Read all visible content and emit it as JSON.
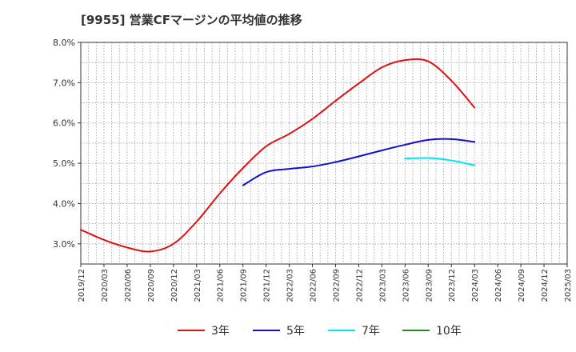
{
  "chart_data": {
    "type": "line",
    "title": "[9955]  営業CFマージンの平均値の推移",
    "xlabel": "",
    "ylabel": "",
    "ylim": [
      2.5,
      8.0
    ],
    "y_ticks": [
      "3.0%",
      "4.0%",
      "5.0%",
      "6.0%",
      "7.0%",
      "8.0%"
    ],
    "y_tick_values": [
      3.0,
      4.0,
      5.0,
      6.0,
      7.0,
      8.0
    ],
    "x_ticks": [
      "2019/12",
      "2020/03",
      "2020/06",
      "2020/09",
      "2020/12",
      "2021/03",
      "2021/06",
      "2021/09",
      "2021/12",
      "2022/03",
      "2022/06",
      "2022/09",
      "2022/12",
      "2023/03",
      "2023/06",
      "2023/09",
      "2023/12",
      "2024/03",
      "2024/06",
      "2024/09",
      "2024/12",
      "2025/03"
    ],
    "grid": true,
    "legend_position": "bottom",
    "series": [
      {
        "name": "3年",
        "color": "#dd1111",
        "x": [
          "2019/12",
          "2020/03",
          "2020/06",
          "2020/09",
          "2020/12",
          "2021/03",
          "2021/06",
          "2021/09",
          "2021/12",
          "2022/03",
          "2022/06",
          "2022/09",
          "2022/12",
          "2023/03",
          "2023/06",
          "2023/09",
          "2023/12",
          "2024/03"
        ],
        "values": [
          3.35,
          3.1,
          2.91,
          2.81,
          3.0,
          3.55,
          4.25,
          4.88,
          5.42,
          5.73,
          6.1,
          6.55,
          6.98,
          7.38,
          7.56,
          7.53,
          7.05,
          6.38
        ]
      },
      {
        "name": "5年",
        "color": "#1111cc",
        "x": [
          "2021/09",
          "2021/12",
          "2022/03",
          "2022/06",
          "2022/09",
          "2022/12",
          "2023/03",
          "2023/06",
          "2023/09",
          "2023/12",
          "2024/03"
        ],
        "values": [
          4.45,
          4.78,
          4.86,
          4.92,
          5.03,
          5.17,
          5.32,
          5.46,
          5.58,
          5.6,
          5.53
        ]
      },
      {
        "name": "7年",
        "color": "#00e5ee",
        "x": [
          "2023/06",
          "2023/09",
          "2023/12",
          "2024/03"
        ],
        "values": [
          5.12,
          5.13,
          5.07,
          4.95
        ]
      },
      {
        "name": "10年",
        "color": "#228b22",
        "x": [],
        "values": []
      }
    ]
  }
}
